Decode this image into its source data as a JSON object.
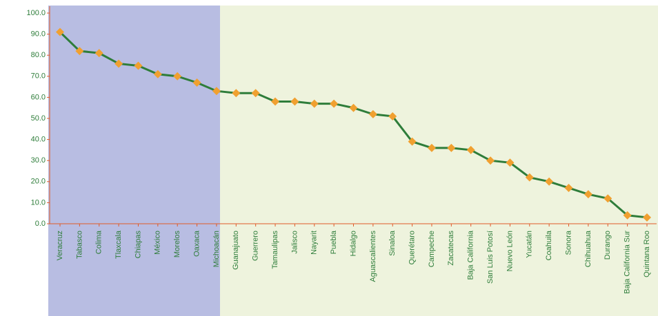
{
  "chart_data": {
    "type": "line",
    "categories": [
      "Veracruz",
      "Tabasco",
      "Colima",
      "Tlaxcala",
      "Chiapas",
      "México",
      "Morelos",
      "Oaxaca",
      "Michoacán",
      "Guanajuato",
      "Guerrero",
      "Tamaulipas",
      "Jalisco",
      "Nayarit",
      "Puebla",
      "Hidalgo",
      "Aguascalientes",
      "Sinaloa",
      "Querétaro",
      "Campeche",
      "Zacatecas",
      "Baja California",
      "San Luis Potosí",
      "Nuevo León",
      "Yucatán",
      "Coahuila",
      "Sonora",
      "Chihuahua",
      "Durango",
      "Baja California Sur",
      "Quintana Roo"
    ],
    "series": [
      {
        "color": "#2e7d3a",
        "marker_color": "#f0a030",
        "values": [
          91,
          82,
          81,
          76,
          75,
          71,
          70,
          67,
          63,
          62,
          62,
          58,
          58,
          57,
          57,
          55,
          52,
          51,
          39,
          36,
          36,
          35,
          30,
          29,
          22,
          20,
          17,
          14,
          12,
          4,
          3
        ]
      }
    ],
    "ylim": [
      0,
      100
    ],
    "yticks": [
      {
        "value": 0,
        "label": "0.0"
      },
      {
        "value": 10,
        "label": "10.0"
      },
      {
        "value": 20,
        "label": "20.0"
      },
      {
        "value": 30,
        "label": "30.0"
      },
      {
        "value": 40,
        "label": "40.0"
      },
      {
        "value": 50,
        "label": "50.0"
      },
      {
        "value": 60,
        "label": "60.0"
      },
      {
        "value": 70,
        "label": "70.0"
      },
      {
        "value": 80,
        "label": "80.0"
      },
      {
        "value": 90,
        "label": "90.0"
      },
      {
        "value": 100,
        "label": "100.0"
      }
    ],
    "axis_color": "#e05a28"
  }
}
